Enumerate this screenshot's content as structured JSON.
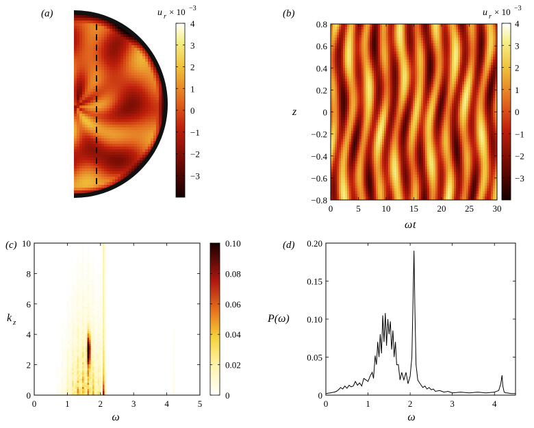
{
  "panels": {
    "a": {
      "label": "(a)"
    },
    "b": {
      "label": "(b)"
    },
    "c": {
      "label": "(c)"
    },
    "d": {
      "label": "(d)"
    }
  },
  "colors": {
    "dark": "#1a0000",
    "red": "#b41a0a",
    "orange": "#e0641e",
    "yellow": "#f5e650",
    "white": "#ffffff"
  },
  "chart_data": [
    {
      "id": "a",
      "type": "heatmap",
      "title": "(a)",
      "description_of_field": "meridional half-disc cross-section of u_r",
      "colorbar": {
        "label": "u_r × 10^-3",
        "label_main": "u",
        "label_sub": "r",
        "label_suffix": "× 10",
        "label_exp": "−3",
        "range": [
          -4,
          4
        ],
        "ticks": [
          4,
          3,
          2,
          1,
          0,
          -1,
          -2,
          -3
        ],
        "tick_labels": [
          "4",
          "3",
          "2",
          "1",
          "0",
          "−1",
          "−2",
          "−3"
        ]
      },
      "annotation": "dashed vertical line"
    },
    {
      "id": "b",
      "type": "heatmap",
      "title": "(b)",
      "xlabel_main": "ω",
      "xlabel_italic": "t",
      "ylabel": "z",
      "xlim": [
        0,
        30
      ],
      "ylim": [
        -0.8,
        0.8
      ],
      "x_ticks": [
        0,
        5,
        10,
        15,
        20,
        25,
        30
      ],
      "x_tick_labels": [
        "0",
        "5",
        "10",
        "15",
        "20",
        "25",
        "30"
      ],
      "y_ticks": [
        0.8,
        0.6,
        0.4,
        0.2,
        0,
        -0.2,
        -0.4,
        -0.6,
        -0.8
      ],
      "y_tick_labels": [
        "0.8",
        "0.6",
        "0.4",
        "0.2",
        "0",
        "−0.2",
        "−0.4",
        "−0.6",
        "−0.8"
      ],
      "colorbar": {
        "label_main": "u",
        "label_sub": "r",
        "label_suffix": "× 10",
        "label_exp": "−3",
        "range": [
          -4,
          4
        ],
        "ticks": [
          4,
          3,
          2,
          1,
          0,
          -1,
          -2,
          -3
        ],
        "tick_labels": [
          "4",
          "3",
          "2",
          "1",
          "0",
          "−1",
          "−2",
          "−3"
        ]
      }
    },
    {
      "id": "c",
      "type": "heatmap",
      "title": "(c)",
      "xlabel": "ω",
      "ylabel_main": "k",
      "ylabel_sub": "z",
      "xlim": [
        0,
        5
      ],
      "ylim": [
        0,
        10
      ],
      "x_ticks": [
        0,
        1,
        2,
        3,
        4,
        5
      ],
      "x_tick_labels": [
        "0",
        "1",
        "2",
        "3",
        "4",
        "5"
      ],
      "y_ticks": [
        10,
        8,
        6,
        4,
        2
      ],
      "y_tick_labels": [
        "10",
        "8",
        "6",
        "4",
        "2"
      ],
      "y_tick_labels_extra": {
        "value": 0,
        "label": "0"
      },
      "features": [
        {
          "omega": 1.6,
          "kz_center": 3.0,
          "intensity": 0.1,
          "note": "strong blob"
        },
        {
          "omega": 2.08,
          "kz_range": [
            0,
            10
          ],
          "intensity": 0.1,
          "note": "dashed line / peak at low kz"
        },
        {
          "omega": 4.2,
          "kz_range": [
            0,
            4
          ],
          "intensity": 0.01,
          "note": "faint streak"
        }
      ],
      "colorbar": {
        "range": [
          0,
          0.1
        ],
        "ticks": [
          0.1,
          0.08,
          0.06,
          0.04,
          0.02,
          0
        ],
        "tick_labels": [
          "0.10",
          "0.08",
          "0.06",
          "0.04",
          "0.02",
          "0"
        ]
      }
    },
    {
      "id": "d",
      "type": "line",
      "title": "(d)",
      "xlabel": "ω",
      "ylabel": "P(ω)",
      "xlim": [
        0,
        4.5
      ],
      "ylim": [
        0,
        0.2
      ],
      "x_ticks": [
        0,
        1,
        2,
        3,
        4
      ],
      "x_tick_labels": [
        "0",
        "1",
        "2",
        "3",
        "4"
      ],
      "y_ticks": [
        0.2,
        0.15,
        0.1,
        0.05
      ],
      "y_tick_labels": [
        "0.20",
        "0.15",
        "0.10",
        "0.05"
      ],
      "y_tick_labels_extra": {
        "value": 0,
        "label": "0"
      },
      "series": [
        {
          "name": "P(ω)",
          "x": [
            0,
            0.1,
            0.2,
            0.25,
            0.3,
            0.35,
            0.4,
            0.45,
            0.5,
            0.55,
            0.6,
            0.65,
            0.7,
            0.75,
            0.8,
            0.85,
            0.9,
            0.95,
            1.0,
            1.05,
            1.1,
            1.13,
            1.17,
            1.2,
            1.23,
            1.26,
            1.29,
            1.32,
            1.35,
            1.38,
            1.41,
            1.44,
            1.47,
            1.5,
            1.53,
            1.56,
            1.59,
            1.62,
            1.65,
            1.68,
            1.72,
            1.76,
            1.8,
            1.85,
            1.9,
            1.95,
            2.0,
            2.04,
            2.07,
            2.09,
            2.11,
            2.14,
            2.18,
            2.2,
            2.25,
            2.3,
            2.35,
            2.4,
            2.45,
            2.5,
            2.55,
            2.6,
            2.7,
            2.8,
            2.9,
            3.0,
            3.2,
            3.4,
            3.6,
            3.8,
            4.0,
            4.1,
            4.15,
            4.18,
            4.2,
            4.23,
            4.27,
            4.3,
            4.4,
            4.5
          ],
          "y": [
            0.002,
            0.003,
            0.004,
            0.005,
            0.007,
            0.01,
            0.008,
            0.012,
            0.009,
            0.013,
            0.011,
            0.012,
            0.018,
            0.013,
            0.016,
            0.012,
            0.022,
            0.02,
            0.018,
            0.025,
            0.03,
            0.022,
            0.052,
            0.04,
            0.07,
            0.05,
            0.08,
            0.055,
            0.105,
            0.07,
            0.108,
            0.065,
            0.1,
            0.08,
            0.097,
            0.06,
            0.085,
            0.05,
            0.07,
            0.04,
            0.04,
            0.02,
            0.03,
            0.02,
            0.03,
            0.015,
            0.025,
            0.05,
            0.13,
            0.19,
            0.12,
            0.04,
            0.02,
            0.018,
            0.014,
            0.01,
            0.012,
            0.008,
            0.01,
            0.007,
            0.008,
            0.005,
            0.006,
            0.004,
            0.005,
            0.003,
            0.004,
            0.003,
            0.004,
            0.003,
            0.004,
            0.006,
            0.015,
            0.026,
            0.012,
            0.004,
            0.003,
            0.003,
            0.002,
            0.002
          ]
        }
      ]
    }
  ]
}
